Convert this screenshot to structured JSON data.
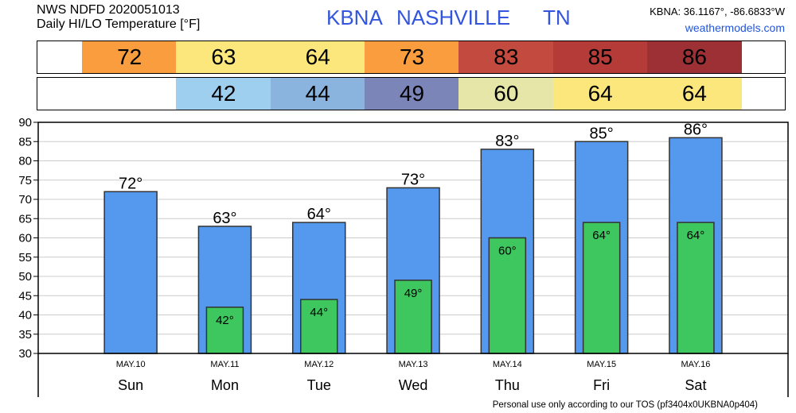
{
  "header": {
    "line1": "NWS NDFD 2020051013",
    "line2": "Daily HI/LO Temperature [°F]",
    "station_id": "KBNA",
    "station_name": "NASHVILLE",
    "state": "TN",
    "coords": "KBNA: 36.1167°, -86.6833°W",
    "site": "weathermodels.com"
  },
  "footer": "Personal use only according to our TOS (pf3404x0UKBNA0p404)",
  "hi_strip": [
    {
      "value": "72",
      "color": "#f99d3f"
    },
    {
      "value": "63",
      "color": "#fbe77b"
    },
    {
      "value": "64",
      "color": "#fbe77b"
    },
    {
      "value": "73",
      "color": "#f99d3f"
    },
    {
      "value": "83",
      "color": "#c24a3e"
    },
    {
      "value": "85",
      "color": "#b53b38"
    },
    {
      "value": "86",
      "color": "#9c3035"
    }
  ],
  "lo_strip": [
    {
      "value": "",
      "color": "#ffffff"
    },
    {
      "value": "42",
      "color": "#9fcfee"
    },
    {
      "value": "44",
      "color": "#8ab4dd"
    },
    {
      "value": "49",
      "color": "#7b85b8"
    },
    {
      "value": "60",
      "color": "#e6e6a8"
    },
    {
      "value": "64",
      "color": "#fbe77b"
    },
    {
      "value": "64",
      "color": "#fbe77b"
    }
  ],
  "chart_data": {
    "type": "bar",
    "categories": [
      "Sun",
      "Mon",
      "Tue",
      "Wed",
      "Thu",
      "Fri",
      "Sat"
    ],
    "dates": [
      "MAY.10",
      "MAY.11",
      "MAY.12",
      "MAY.13",
      "MAY.14",
      "MAY.15",
      "MAY.16"
    ],
    "series": [
      {
        "values": [
          72,
          63,
          64,
          73,
          83,
          85,
          86
        ],
        "color": "#5599ee"
      },
      {
        "values": [
          null,
          42,
          44,
          49,
          60,
          64,
          64
        ],
        "color": "#3ec65f"
      }
    ],
    "hi_labels": [
      "72°",
      "63°",
      "64°",
      "73°",
      "83°",
      "85°",
      "86°"
    ],
    "lo_labels": [
      "",
      "42°",
      "44°",
      "49°",
      "60°",
      "64°",
      "64°"
    ],
    "yticks": [
      "30",
      "35",
      "40",
      "45",
      "50",
      "55",
      "60",
      "65",
      "70",
      "75",
      "80",
      "85",
      "90"
    ],
    "ylim": [
      30,
      90
    ],
    "grid": true
  }
}
